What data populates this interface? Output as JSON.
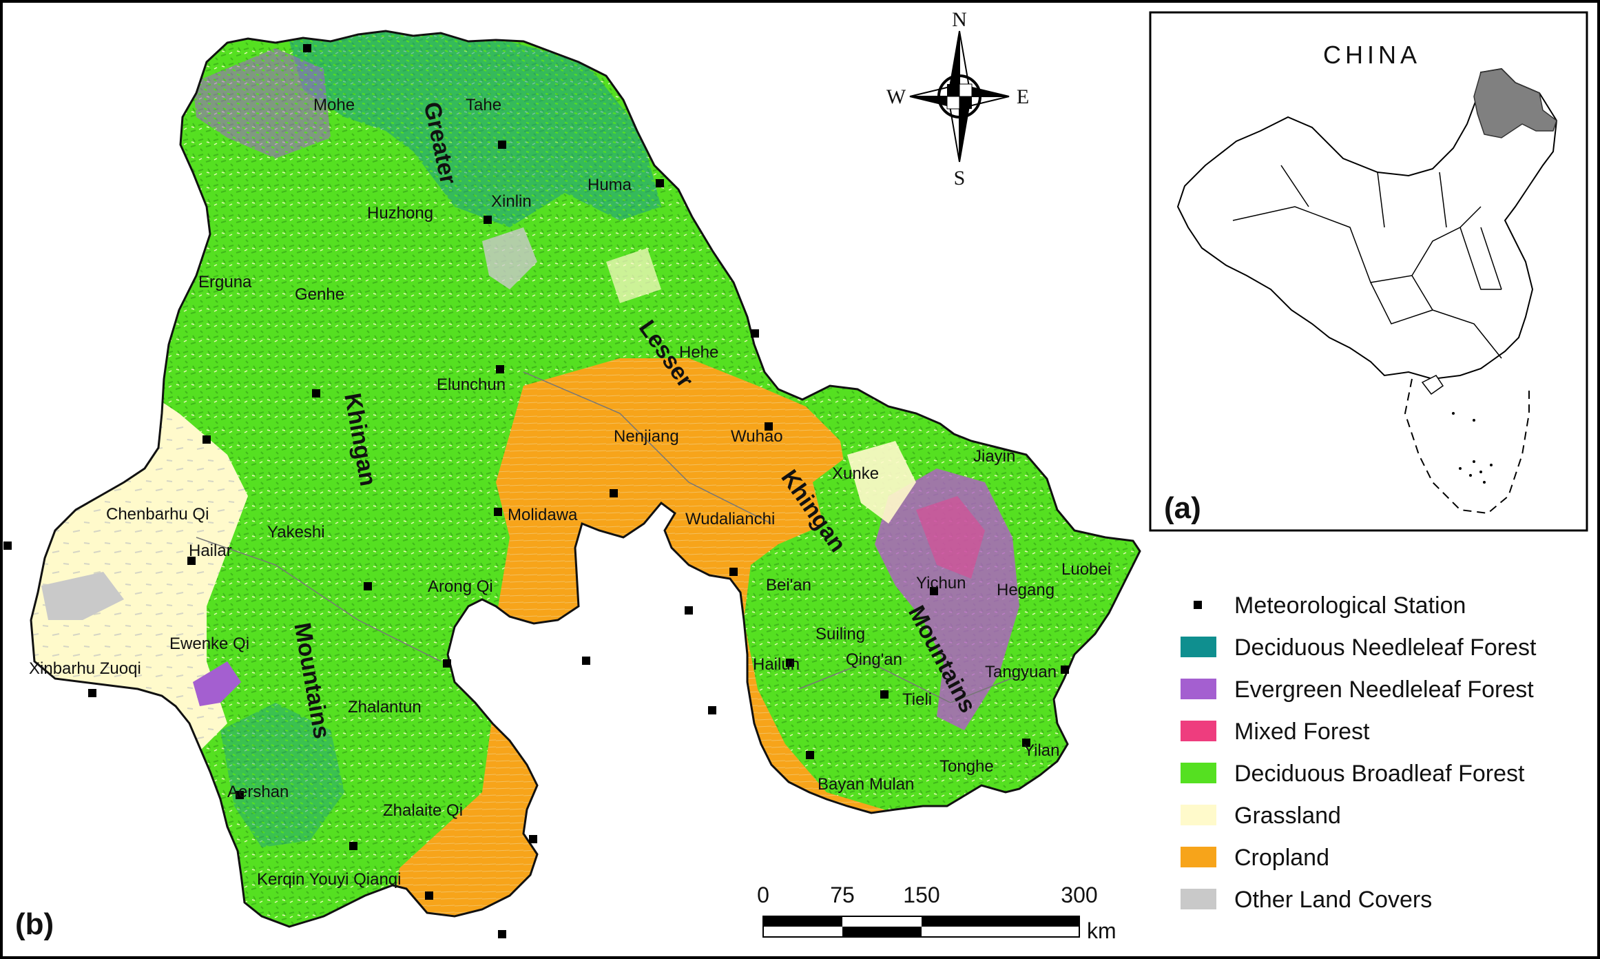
{
  "panels": {
    "main_label": "(b)",
    "inset_label": "(a)"
  },
  "inset": {
    "title": "CHINA",
    "highlight_color": "#808080"
  },
  "compass": {
    "n": "N",
    "s": "S",
    "e": "E",
    "w": "W"
  },
  "ranges": [
    {
      "text": "Greater",
      "rotate": 78
    },
    {
      "text": "Khingan",
      "rotate": 80
    },
    {
      "text": "Mountains",
      "rotate": 80
    },
    {
      "text": "Lesser",
      "rotate": 55
    },
    {
      "text": "Khingan",
      "rotate": 55
    },
    {
      "text": "Mountains",
      "rotate": 62
    }
  ],
  "towns": [
    "Mohe",
    "Tahe",
    "Huma",
    "Xinlin",
    "Huzhong",
    "Erguna",
    "Genhe",
    "Hehe",
    "Elunchun",
    "Nenjiang",
    "Wuhao",
    "Xunke",
    "Jiayin",
    "Chenbarhu Qi",
    "Yakeshi",
    "Hailar",
    "Molidawa",
    "Wudalianchi",
    "Luobei",
    "Yichun",
    "Hegang",
    "Bei'an",
    "Arong Qi",
    "Ewenke Qi",
    "Suiling",
    "Hailun",
    "Qing'an",
    "Tangyuan",
    "Xinbarhu Zuoqi",
    "Tieli",
    "Zhalantun",
    "Tonghe",
    "Yilan",
    "Aershan",
    "Bayan",
    "Mulan",
    "Zhalaite Qi",
    "Kerqin Youyi Qianqi"
  ],
  "legend": [
    {
      "label": "Meteorological Station",
      "color": "#000000",
      "symbol": "square"
    },
    {
      "label": "Deciduous Needleleaf Forest",
      "color": "#0f8f8f",
      "symbol": "swatch"
    },
    {
      "label": "Evergreen Needleleaf Forest",
      "color": "#a45fd0",
      "symbol": "swatch"
    },
    {
      "label": "Mixed Forest",
      "color": "#ee3d7e",
      "symbol": "swatch"
    },
    {
      "label": "Deciduous Broadleaf Forest",
      "color": "#55e021",
      "symbol": "swatch"
    },
    {
      "label": "Grassland",
      "color": "#fffacb",
      "symbol": "swatch"
    },
    {
      "label": "Cropland",
      "color": "#f7a41a",
      "symbol": "swatch"
    },
    {
      "label": "Other Land Covers",
      "color": "#c9c9c9",
      "symbol": "swatch"
    }
  ],
  "scale_bar": {
    "ticks": [
      "0",
      "75",
      "150",
      "300"
    ],
    "unit": "km"
  }
}
